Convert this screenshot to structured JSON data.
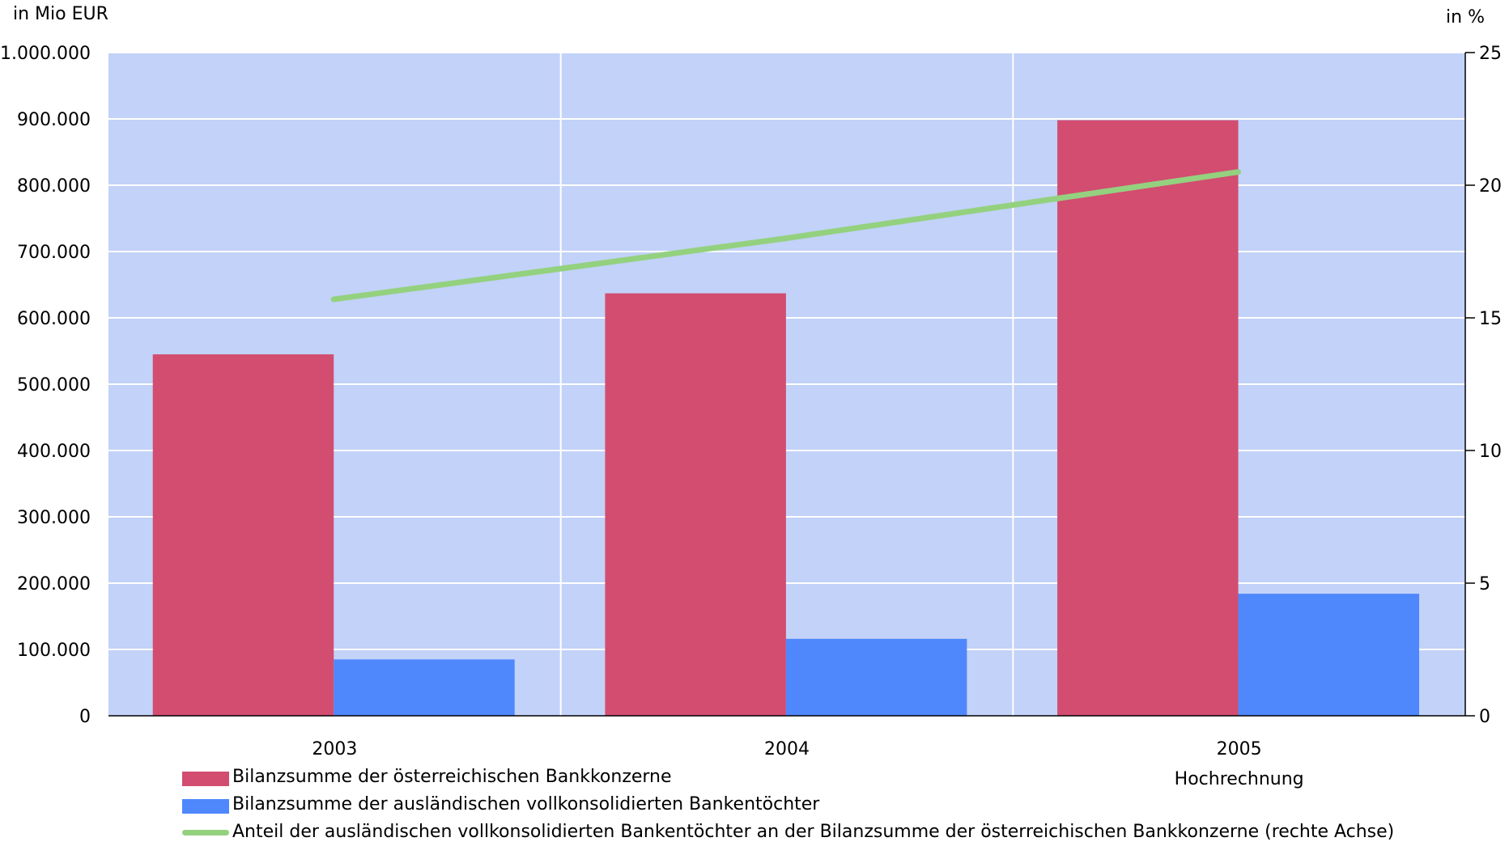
{
  "chart_data": {
    "type": "bar",
    "left_axis_unit": "in Mio EUR",
    "right_axis_unit": "in %",
    "categories": [
      "2003",
      "2004",
      "2005"
    ],
    "category_sublabels": [
      "",
      "",
      "Hochrechnung"
    ],
    "y_left_lim": [
      0,
      1000000
    ],
    "y_left_ticks": [
      "0",
      "100.000",
      "200.000",
      "300.000",
      "400.000",
      "500.000",
      "600.000",
      "700.000",
      "800.000",
      "900.000",
      "1.000.000"
    ],
    "y_right_lim": [
      0,
      25
    ],
    "y_right_ticks": [
      "0",
      "5",
      "10",
      "15",
      "20",
      "25"
    ],
    "grid": true,
    "legend_position": "bottom",
    "series": [
      {
        "name": "Bilanzsumme der österreichischen Bankkonzerne",
        "kind": "bar",
        "axis": "left",
        "color": "#d24d70",
        "values": [
          545000,
          637000,
          898000
        ]
      },
      {
        "name": "Bilanzsumme der ausländischen vollkonsolidierten Bankentöchter",
        "kind": "bar",
        "axis": "left",
        "color": "#4f87fc",
        "values": [
          85000,
          116000,
          184000
        ]
      },
      {
        "name": "Anteil der ausländischen vollkonsolidierten Bankentöchter an der Bilanzsumme der österreichischen Bankkonzerne (rechte Achse)",
        "kind": "line",
        "axis": "right",
        "color": "#94d17f",
        "values": [
          15.7,
          18.0,
          20.5
        ]
      }
    ],
    "plot_background": "#c2d2f8",
    "grid_color": "#ffffff"
  }
}
